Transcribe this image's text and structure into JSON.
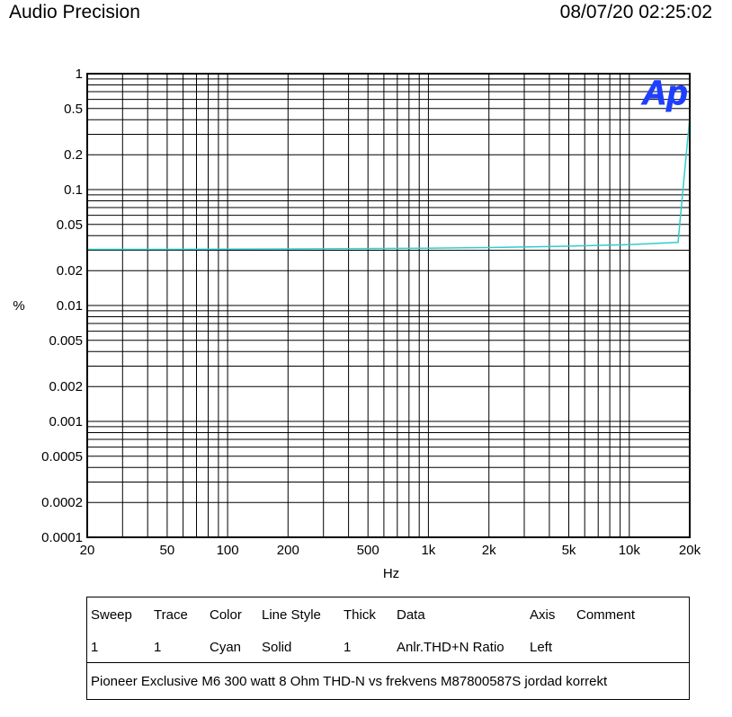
{
  "header": {
    "app_title": "Audio Precision",
    "timestamp": "08/07/20 02:25:02"
  },
  "logo": {
    "text": "Ap",
    "color": "#1f3fff"
  },
  "chart_data": {
    "type": "line",
    "x_scale": "log",
    "y_scale": "log",
    "xlabel": "Hz",
    "ylabel": "%",
    "xlim": [
      20,
      20000
    ],
    "ylim": [
      0.0001,
      1
    ],
    "x_ticks": [
      {
        "value": 20,
        "label": "20"
      },
      {
        "value": 50,
        "label": "50"
      },
      {
        "value": 100,
        "label": "100"
      },
      {
        "value": 200,
        "label": "200"
      },
      {
        "value": 500,
        "label": "500"
      },
      {
        "value": 1000,
        "label": "1k"
      },
      {
        "value": 2000,
        "label": "2k"
      },
      {
        "value": 5000,
        "label": "5k"
      },
      {
        "value": 10000,
        "label": "10k"
      },
      {
        "value": 20000,
        "label": "20k"
      }
    ],
    "y_ticks": [
      {
        "value": 1,
        "label": "1"
      },
      {
        "value": 0.5,
        "label": "0.5"
      },
      {
        "value": 0.2,
        "label": "0.2"
      },
      {
        "value": 0.1,
        "label": "0.1"
      },
      {
        "value": 0.05,
        "label": "0.05"
      },
      {
        "value": 0.02,
        "label": "0.02"
      },
      {
        "value": 0.01,
        "label": "0.01"
      },
      {
        "value": 0.005,
        "label": "0.005"
      },
      {
        "value": 0.002,
        "label": "0.002"
      },
      {
        "value": 0.001,
        "label": "0.001"
      },
      {
        "value": 0.0005,
        "label": "0.0005"
      },
      {
        "value": 0.0002,
        "label": "0.0002"
      },
      {
        "value": 0.0001,
        "label": "0.0001"
      }
    ],
    "grid": true,
    "series": [
      {
        "color": "#33cccc",
        "x": [
          20,
          50,
          100,
          200,
          500,
          1000,
          2000,
          5000,
          10000,
          17500,
          20000
        ],
        "y": [
          0.0305,
          0.0305,
          0.0306,
          0.0308,
          0.031,
          0.0312,
          0.0316,
          0.0325,
          0.0335,
          0.035,
          0.42
        ]
      }
    ]
  },
  "legend_table": {
    "headers": {
      "sweep": "Sweep",
      "trace": "Trace",
      "color": "Color",
      "line_style": "Line Style",
      "thick": "Thick",
      "data": "Data",
      "axis": "Axis",
      "comment": "Comment"
    },
    "row": {
      "sweep": "1",
      "trace": "1",
      "color": "Cyan",
      "line_style": "Solid",
      "thick": "1",
      "data": "Anlr.THD+N Ratio",
      "axis": "Left",
      "comment": ""
    },
    "comment_line": "Pioneer Exclusive M6 300 watt 8 Ohm THD-N vs frekvens M87800587S jordad korrekt"
  }
}
